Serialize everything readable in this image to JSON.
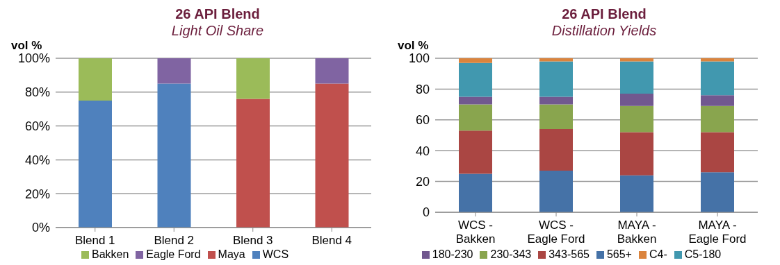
{
  "chart_data": [
    {
      "type": "bar",
      "title": "26 API Blend",
      "subtitle": "Light Oil Share",
      "ylabel": "vol %",
      "categories": [
        "Blend 1",
        "Blend 2",
        "Blend 3",
        "Blend 4"
      ],
      "stacked": true,
      "grid": "y",
      "legend": "bottom",
      "ylim": [
        0,
        100
      ],
      "yticks": [
        {
          "value": 0,
          "label": "0%"
        },
        {
          "value": 20,
          "label": "20%"
        },
        {
          "value": 40,
          "label": "40%"
        },
        {
          "value": 60,
          "label": "60%"
        },
        {
          "value": 80,
          "label": "80%"
        },
        {
          "value": 100,
          "label": "100%"
        }
      ],
      "series": [
        {
          "name": "WCS",
          "color": "#4f81bd",
          "values": [
            75,
            85,
            null,
            null
          ]
        },
        {
          "name": "Maya",
          "color": "#c0504d",
          "values": [
            null,
            null,
            76,
            85
          ]
        },
        {
          "name": "Bakken",
          "color": "#9bbb59",
          "values": [
            25,
            null,
            24,
            null
          ]
        },
        {
          "name": "Eagle Ford",
          "color": "#8064a2",
          "values": [
            null,
            15,
            null,
            15
          ]
        }
      ]
    },
    {
      "type": "bar",
      "title": "26 API Blend",
      "subtitle": "Distillation Yields",
      "ylabel": "vol %",
      "categories": [
        "WCS - Bakken",
        "WCS - Eagle Ford",
        "MAYA - Bakken",
        "MAYA - Eagle Ford"
      ],
      "stacked": true,
      "grid": "y",
      "legend": "bottom",
      "ylim": [
        0,
        100
      ],
      "yticks": [
        0,
        20,
        40,
        60,
        80,
        100
      ],
      "series": [
        {
          "name": "565+",
          "color": "#4572a7",
          "values": [
            25,
            27,
            24,
            26
          ]
        },
        {
          "name": "343-565",
          "color": "#aa4643",
          "values": [
            28,
            27,
            28,
            26
          ]
        },
        {
          "name": "230-343",
          "color": "#89a54e",
          "values": [
            17,
            16,
            17,
            17
          ]
        },
        {
          "name": "180-230",
          "color": "#71588f",
          "values": [
            5,
            5,
            8,
            7
          ]
        },
        {
          "name": "C5-180",
          "color": "#4198af",
          "values": [
            22,
            23,
            21,
            22
          ]
        },
        {
          "name": "C4-",
          "color": "#db843d",
          "values": [
            3,
            2,
            2,
            2
          ]
        }
      ]
    }
  ]
}
